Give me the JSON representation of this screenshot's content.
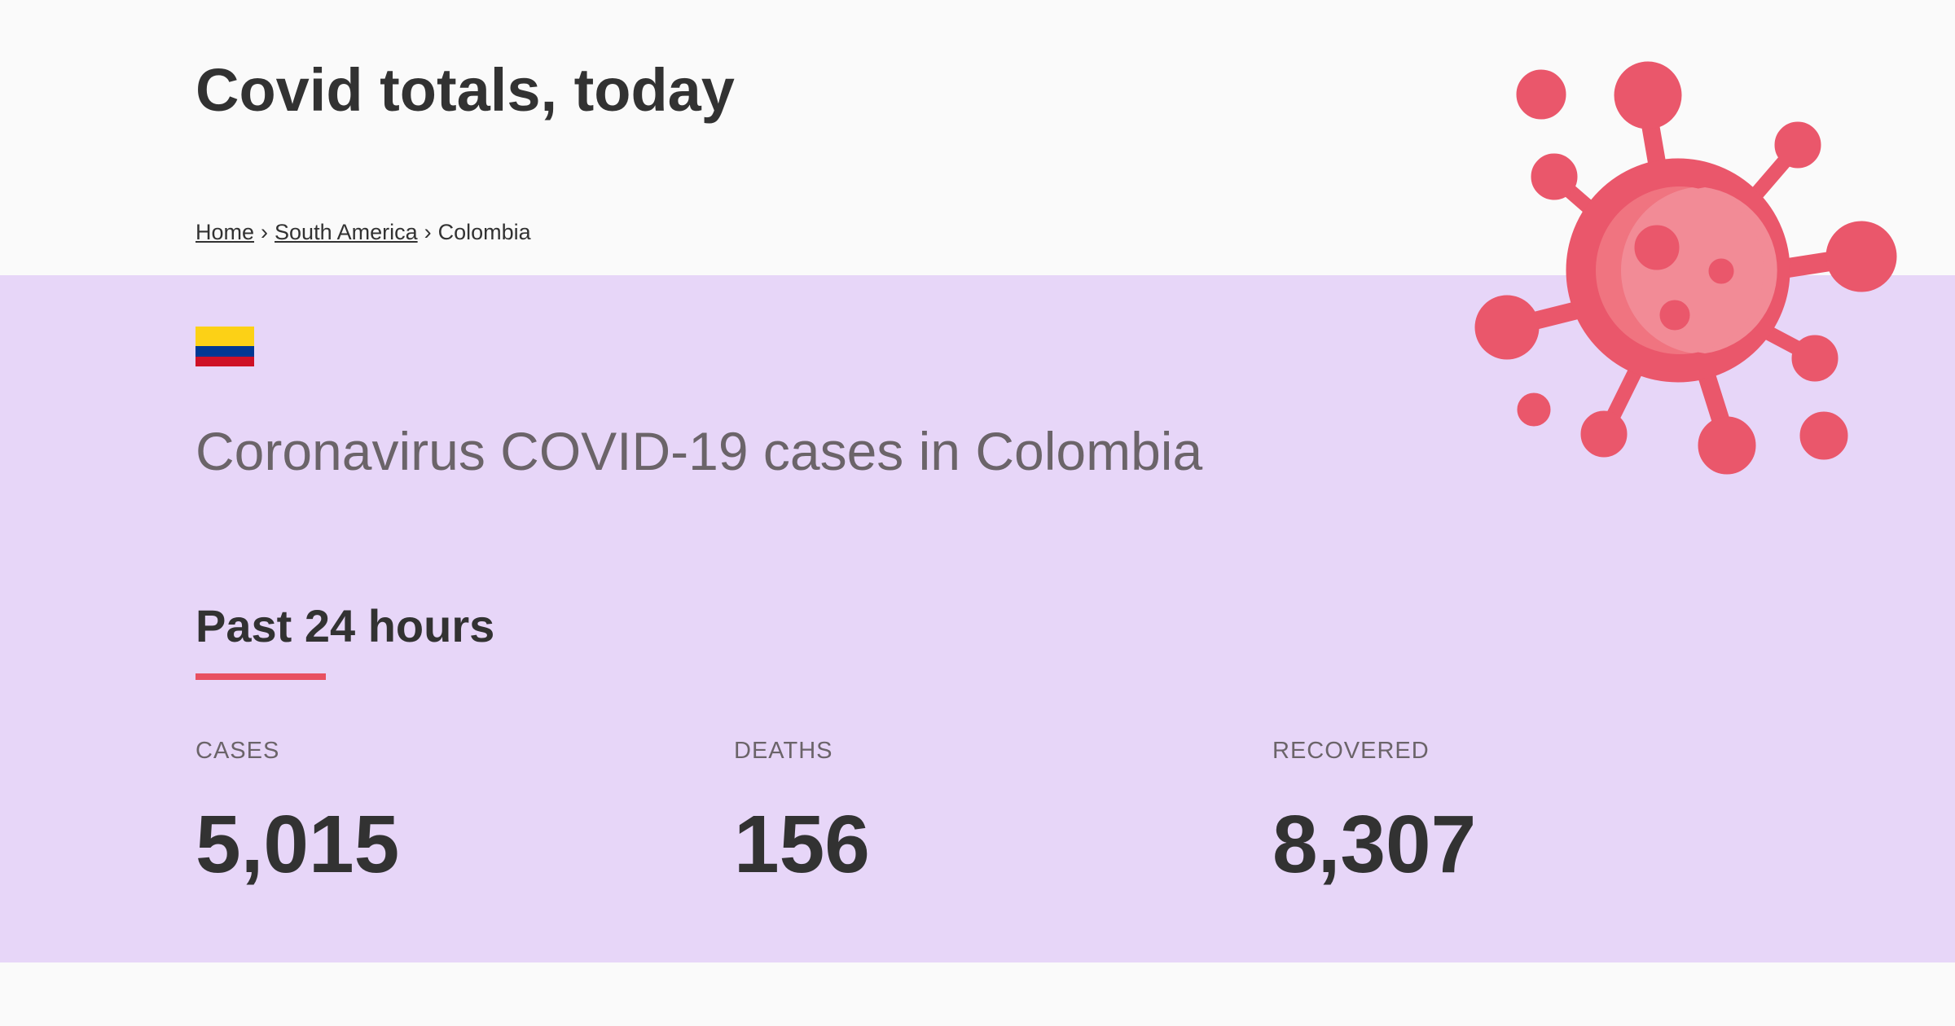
{
  "header": {
    "title": "Covid totals, today"
  },
  "breadcrumb": {
    "home": "Home",
    "region": "South America",
    "current": "Colombia",
    "separator": "›"
  },
  "country": {
    "heading": "Coronavirus COVID-19 cases in Colombia",
    "flag_colors": [
      "#fcd116",
      "#003893",
      "#ce1126"
    ]
  },
  "section": {
    "title": "Past 24 hours",
    "accent_color": "#e85061"
  },
  "stats": {
    "cases": {
      "label": "CASES",
      "value": "5,015"
    },
    "deaths": {
      "label": "DEATHS",
      "value": "156"
    },
    "recovered": {
      "label": "RECOVERED",
      "value": "8,307"
    }
  },
  "illustration": {
    "icon": "virus-icon",
    "color": "#ea576b"
  }
}
